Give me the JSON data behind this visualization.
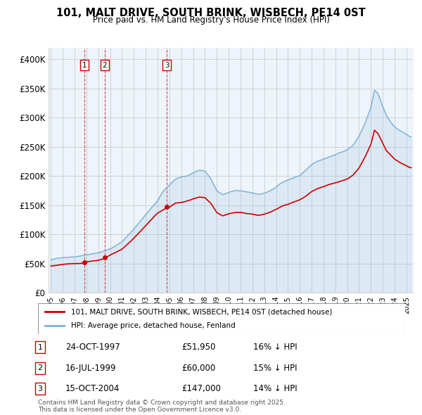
{
  "title": "101, MALT DRIVE, SOUTH BRINK, WISBECH, PE14 0ST",
  "subtitle": "Price paid vs. HM Land Registry's House Price Index (HPI)",
  "ylim": [
    0,
    420000
  ],
  "yticks": [
    0,
    50000,
    100000,
    150000,
    200000,
    250000,
    300000,
    350000,
    400000
  ],
  "ytick_labels": [
    "£0",
    "£50K",
    "£100K",
    "£150K",
    "£200K",
    "£250K",
    "£300K",
    "£350K",
    "£400K"
  ],
  "legend_line1": "101, MALT DRIVE, SOUTH BRINK, WISBECH, PE14 0ST (detached house)",
  "legend_line2": "HPI: Average price, detached house, Fenland",
  "sales": [
    {
      "label": "1",
      "date": "24-OCT-1997",
      "price": 51950,
      "year": 1997.81,
      "hpi_pct": "16% ↓ HPI"
    },
    {
      "label": "2",
      "date": "16-JUL-1999",
      "price": 60000,
      "year": 1999.54,
      "hpi_pct": "15% ↓ HPI"
    },
    {
      "label": "3",
      "date": "15-OCT-2004",
      "price": 147000,
      "year": 2004.79,
      "hpi_pct": "14% ↓ HPI"
    }
  ],
  "footer1": "Contains HM Land Registry data © Crown copyright and database right 2025.",
  "footer2": "This data is licensed under the Open Government Licence v3.0.",
  "red_color": "#cc0000",
  "blue_color": "#7ab0d4",
  "plot_bg": "#eef4fb",
  "background_color": "#ffffff",
  "hpi_points": [
    [
      1995.0,
      56000
    ],
    [
      1996.0,
      60000
    ],
    [
      1997.0,
      62000
    ],
    [
      1998.0,
      66000
    ],
    [
      1999.0,
      69000
    ],
    [
      2000.0,
      76000
    ],
    [
      2001.0,
      88000
    ],
    [
      2002.0,
      110000
    ],
    [
      2003.0,
      135000
    ],
    [
      2004.0,
      158000
    ],
    [
      2004.5,
      175000
    ],
    [
      2005.0,
      185000
    ],
    [
      2005.5,
      195000
    ],
    [
      2006.0,
      198000
    ],
    [
      2006.5,
      200000
    ],
    [
      2007.0,
      205000
    ],
    [
      2007.5,
      210000
    ],
    [
      2008.0,
      208000
    ],
    [
      2008.5,
      195000
    ],
    [
      2009.0,
      175000
    ],
    [
      2009.5,
      168000
    ],
    [
      2010.0,
      172000
    ],
    [
      2010.5,
      175000
    ],
    [
      2011.0,
      174000
    ],
    [
      2011.5,
      172000
    ],
    [
      2012.0,
      170000
    ],
    [
      2012.5,
      168000
    ],
    [
      2013.0,
      170000
    ],
    [
      2013.5,
      174000
    ],
    [
      2014.0,
      180000
    ],
    [
      2014.5,
      188000
    ],
    [
      2015.0,
      192000
    ],
    [
      2015.5,
      196000
    ],
    [
      2016.0,
      200000
    ],
    [
      2016.5,
      208000
    ],
    [
      2017.0,
      218000
    ],
    [
      2017.5,
      224000
    ],
    [
      2018.0,
      228000
    ],
    [
      2018.5,
      232000
    ],
    [
      2019.0,
      236000
    ],
    [
      2019.5,
      240000
    ],
    [
      2020.0,
      244000
    ],
    [
      2020.5,
      252000
    ],
    [
      2021.0,
      268000
    ],
    [
      2021.5,
      290000
    ],
    [
      2022.0,
      318000
    ],
    [
      2022.3,
      348000
    ],
    [
      2022.6,
      342000
    ],
    [
      2023.0,
      320000
    ],
    [
      2023.3,
      305000
    ],
    [
      2023.6,
      295000
    ],
    [
      2024.0,
      285000
    ],
    [
      2024.5,
      278000
    ],
    [
      2025.0,
      272000
    ],
    [
      2025.3,
      268000
    ]
  ],
  "red_points": [
    [
      1995.0,
      47000
    ],
    [
      1996.0,
      49500
    ],
    [
      1997.0,
      51000
    ],
    [
      1997.81,
      51950
    ],
    [
      1998.0,
      54000
    ],
    [
      1999.0,
      57000
    ],
    [
      1999.54,
      60000
    ],
    [
      2000.0,
      66000
    ],
    [
      2001.0,
      76000
    ],
    [
      2002.0,
      95000
    ],
    [
      2003.0,
      117000
    ],
    [
      2004.0,
      138000
    ],
    [
      2004.79,
      147000
    ],
    [
      2005.0,
      148000
    ],
    [
      2005.5,
      155000
    ],
    [
      2006.0,
      156000
    ],
    [
      2006.5,
      158000
    ],
    [
      2007.0,
      162000
    ],
    [
      2007.5,
      165000
    ],
    [
      2008.0,
      164000
    ],
    [
      2008.5,
      154000
    ],
    [
      2009.0,
      138000
    ],
    [
      2009.5,
      132000
    ],
    [
      2010.0,
      135000
    ],
    [
      2010.5,
      137000
    ],
    [
      2011.0,
      137000
    ],
    [
      2011.5,
      135000
    ],
    [
      2012.0,
      134000
    ],
    [
      2012.5,
      132000
    ],
    [
      2013.0,
      134000
    ],
    [
      2013.5,
      137000
    ],
    [
      2014.0,
      142000
    ],
    [
      2014.5,
      148000
    ],
    [
      2015.0,
      151000
    ],
    [
      2015.5,
      155000
    ],
    [
      2016.0,
      158000
    ],
    [
      2016.5,
      164000
    ],
    [
      2017.0,
      172000
    ],
    [
      2017.5,
      177000
    ],
    [
      2018.0,
      180000
    ],
    [
      2018.5,
      184000
    ],
    [
      2019.0,
      187000
    ],
    [
      2019.5,
      190000
    ],
    [
      2020.0,
      193000
    ],
    [
      2020.5,
      200000
    ],
    [
      2021.0,
      212000
    ],
    [
      2021.5,
      230000
    ],
    [
      2022.0,
      252000
    ],
    [
      2022.3,
      276000
    ],
    [
      2022.6,
      270000
    ],
    [
      2023.0,
      254000
    ],
    [
      2023.3,
      241000
    ],
    [
      2023.6,
      235000
    ],
    [
      2024.0,
      226000
    ],
    [
      2024.5,
      220000
    ],
    [
      2025.0,
      215000
    ],
    [
      2025.3,
      212000
    ]
  ]
}
